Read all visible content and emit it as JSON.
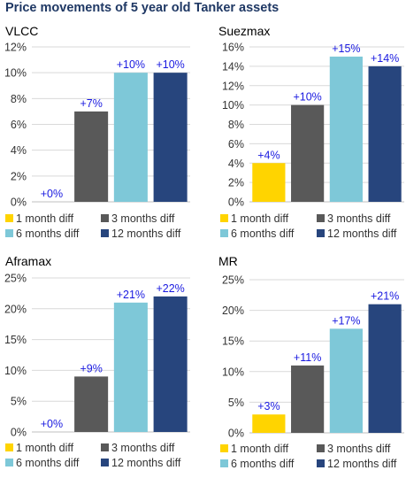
{
  "title": "Price movements of 5 year old Tanker assets",
  "series_names": [
    "1 month diff",
    "3 months diff",
    "6 months diff",
    "12 months diff"
  ],
  "colors": {
    "1 month diff": "#ffd400",
    "3 months diff": "#595959",
    "6 months diff": "#7ec8d8",
    "12 months diff": "#27457d",
    "data_label": "#1a1ae0",
    "gridline": "#d9d9d9",
    "axis": "#bfbfbf"
  },
  "chart_data": [
    {
      "type": "bar",
      "title": "VLCC",
      "categories": [
        "1 month diff",
        "3 months diff",
        "6 months diff",
        "12 months diff"
      ],
      "values": [
        0,
        7,
        10,
        10
      ],
      "data_labels": [
        "+0%",
        "+7%",
        "+10%",
        "+10%"
      ],
      "yticks": [
        "0%",
        "2%",
        "4%",
        "6%",
        "8%",
        "10%",
        "12%"
      ],
      "ylim": [
        0,
        12
      ],
      "grid": true,
      "legend": "bottom"
    },
    {
      "type": "bar",
      "title": "Suezmax",
      "categories": [
        "1 month diff",
        "3 months diff",
        "6 months diff",
        "12 months diff"
      ],
      "values": [
        4,
        10,
        15,
        14
      ],
      "data_labels": [
        "+4%",
        "+10%",
        "+15%",
        "+14%"
      ],
      "yticks": [
        "0%",
        "2%",
        "4%",
        "6%",
        "8%",
        "10%",
        "12%",
        "14%",
        "16%"
      ],
      "ylim": [
        0,
        16
      ],
      "grid": true,
      "legend": "bottom"
    },
    {
      "type": "bar",
      "title": "Aframax",
      "categories": [
        "1 month diff",
        "3 months diff",
        "6 months diff",
        "12 months diff"
      ],
      "values": [
        0,
        9,
        21,
        22
      ],
      "data_labels": [
        "+0%",
        "+9%",
        "+21%",
        "+22%"
      ],
      "yticks": [
        "0%",
        "5%",
        "10%",
        "15%",
        "20%",
        "25%"
      ],
      "ylim": [
        0,
        25
      ],
      "grid": true,
      "legend": "bottom"
    },
    {
      "type": "bar",
      "title": "MR",
      "categories": [
        "1 month diff",
        "3 months diff",
        "6 months diff",
        "12 months diff"
      ],
      "values": [
        3,
        11,
        17,
        21
      ],
      "data_labels": [
        "+3%",
        "+11%",
        "+17%",
        "+21%"
      ],
      "yticks": [
        "0%",
        "5%",
        "10%",
        "15%",
        "20%",
        "25%"
      ],
      "ylim": [
        0,
        25
      ],
      "grid": true,
      "legend": "bottom"
    }
  ]
}
